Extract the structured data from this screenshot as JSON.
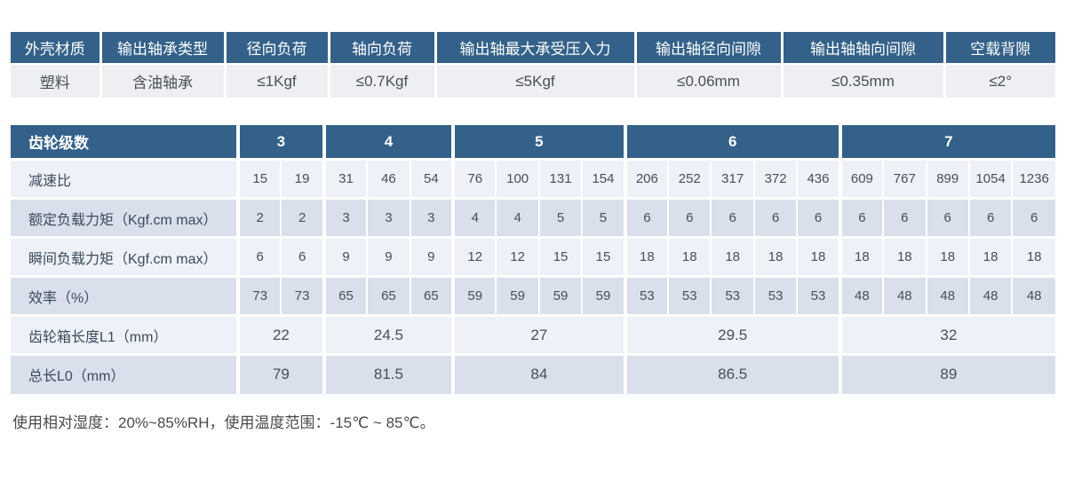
{
  "colors": {
    "header_bg": "#336189",
    "header_text": "#ffffff",
    "row_light": "#eef1f7",
    "row_dark": "#d9dfeb",
    "spec_value_bg": "#edeff3",
    "label_text": "#3c4b5c",
    "value_text": "#4a4f55"
  },
  "spec_table": {
    "headers": [
      "外壳材质",
      "输出轴承类型",
      "径向负荷",
      "轴向负荷",
      "输出轴最大承受压入力",
      "输出轴径向间隙",
      "输出轴轴向间隙",
      "空载背隙"
    ],
    "values": [
      "塑料",
      "含油轴承",
      "≤1Kgf",
      "≤0.7Kgf",
      "≤5Kgf",
      "≤0.06mm",
      "≤0.35mm",
      "≤2°"
    ]
  },
  "gear_table": {
    "corner_label": "齿轮级数",
    "groups": [
      {
        "label": "3",
        "span": 2
      },
      {
        "label": "4",
        "span": 3
      },
      {
        "label": "5",
        "span": 4
      },
      {
        "label": "6",
        "span": 5
      },
      {
        "label": "7",
        "span": 5
      }
    ],
    "rows": [
      {
        "label": "减速比",
        "per": "column",
        "values": [
          "15",
          "19",
          "31",
          "46",
          "54",
          "76",
          "100",
          "131",
          "154",
          "206",
          "252",
          "317",
          "372",
          "436",
          "609",
          "767",
          "899",
          "1054",
          "1236"
        ]
      },
      {
        "label": "额定负载力矩（Kgf.cm max）",
        "per": "column",
        "values": [
          "2",
          "2",
          "3",
          "3",
          "3",
          "4",
          "4",
          "5",
          "5",
          "6",
          "6",
          "6",
          "6",
          "6",
          "6",
          "6",
          "6",
          "6",
          "6"
        ]
      },
      {
        "label": "瞬间负载力矩（Kgf.cm max）",
        "per": "column",
        "values": [
          "6",
          "6",
          "9",
          "9",
          "9",
          "12",
          "12",
          "15",
          "15",
          "18",
          "18",
          "18",
          "18",
          "18",
          "18",
          "18",
          "18",
          "18",
          "18"
        ]
      },
      {
        "label": "效率（%）",
        "per": "column",
        "values": [
          "73",
          "73",
          "65",
          "65",
          "65",
          "59",
          "59",
          "59",
          "59",
          "53",
          "53",
          "53",
          "53",
          "53",
          "48",
          "48",
          "48",
          "48",
          "48"
        ]
      },
      {
        "label": "齿轮箱长度L1（mm）",
        "per": "group",
        "values": [
          "22",
          "24.5",
          "27",
          "29.5",
          "32"
        ]
      },
      {
        "label": "总长L0（mm）",
        "per": "group",
        "values": [
          "79",
          "81.5",
          "84",
          "86.5",
          "89"
        ]
      }
    ]
  },
  "footer": {
    "note": "使用相对湿度：20%~85%RH，使用温度范围：-15℃ ~ 85℃。"
  }
}
